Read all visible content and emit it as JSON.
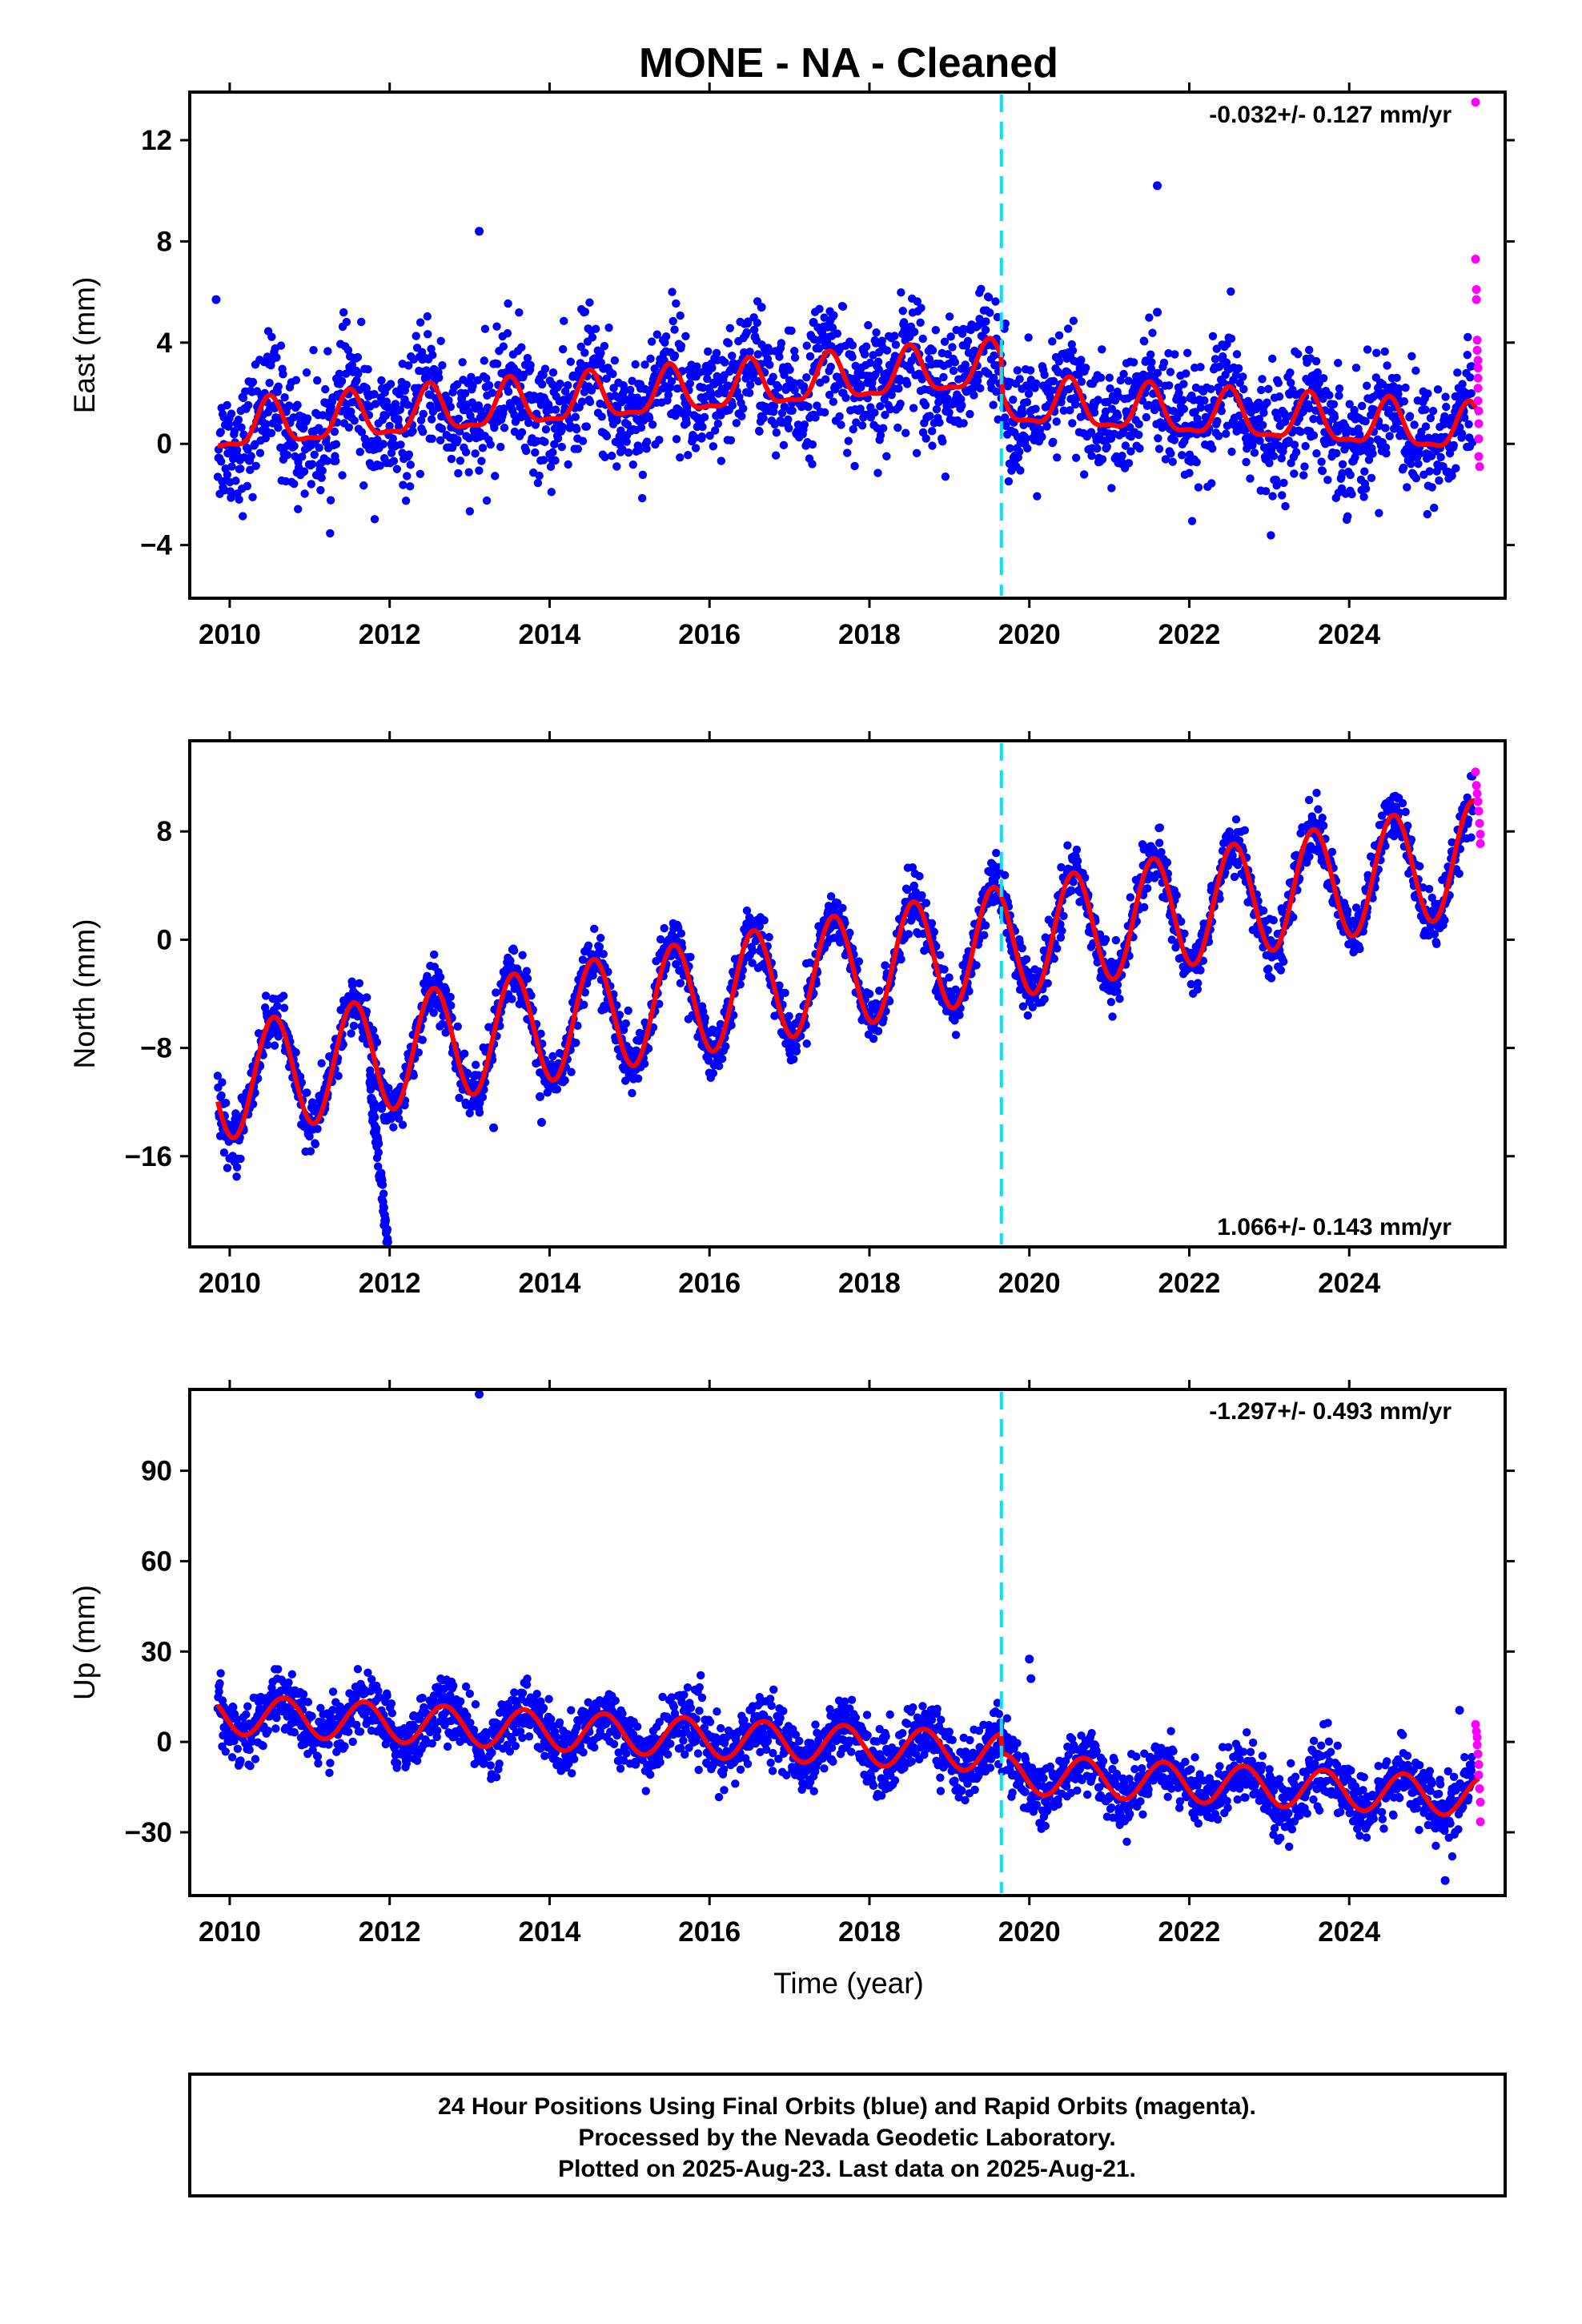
{
  "title": "MONE  - NA - Cleaned",
  "x_axis_label": "Time (year)",
  "footer_lines": [
    "24 Hour Positions Using Final Orbits (blue) and Rapid Orbits (magenta).",
    "Processed by the Nevada Geodetic Laboratory.",
    "Plotted on 2025-Aug-23. Last data on 2025-Aug-21."
  ],
  "colors": {
    "final_orbits": "#0000ff",
    "rapid_orbits": "#ff00ff",
    "model_fit": "#ff0000",
    "equipment_change": "#00e5ff",
    "frame": "#000000"
  },
  "chart_data": [
    {
      "type": "scatter",
      "component": "East",
      "ylabel": "East (mm)",
      "xlim": [
        2009.5,
        2025.95
      ],
      "ylim": [
        -6.1,
        13.9
      ],
      "yticks": [
        -4,
        0,
        4,
        8,
        12
      ],
      "xticks": [
        2010,
        2012,
        2014,
        2016,
        2018,
        2020,
        2022,
        2024
      ],
      "rate_annotation": "-0.032+/- 0.127 mm/yr",
      "equipment_change_x": 2019.65,
      "model": {
        "offset": 0.6,
        "trend": 0.25,
        "trend_after_break": -0.19,
        "break_x": 2019.65,
        "break_jump": -1.4,
        "annual_amp": 0.9,
        "annual_phase": 0.5,
        "semiannual_amp": 0.3
      },
      "final_orbits": {
        "x_range": [
          2009.85,
          2025.55
        ],
        "noise_std": 1.2
      },
      "rapid_orbits": {
        "x": [
          2025.58,
          2025.58,
          2025.59,
          2025.59,
          2025.6,
          2025.6,
          2025.61,
          2025.61,
          2025.61,
          2025.61,
          2025.61,
          2025.62,
          2025.62,
          2025.62,
          2025.62,
          2025.63
        ],
        "y": [
          13.5,
          7.3,
          6.1,
          5.7,
          4.1,
          3.7,
          3.3,
          3.0,
          2.6,
          2.2,
          1.7,
          1.3,
          0.8,
          0.2,
          -0.5,
          -0.9
        ]
      },
      "outliers": {
        "x": [
          2009.83,
          2013.12,
          2021.6,
          2021.6,
          2016.65,
          2017.3
        ],
        "y": [
          5.7,
          8.4,
          10.2,
          5.2,
          5.4,
          4.8
        ]
      }
    },
    {
      "type": "scatter",
      "component": "North",
      "ylabel": "North (mm)",
      "xlim": [
        2009.5,
        2025.95
      ],
      "ylim": [
        -22.7,
        14.7
      ],
      "yticks": [
        -16,
        -8,
        0,
        8
      ],
      "xticks": [
        2010,
        2012,
        2014,
        2016,
        2018,
        2020,
        2022,
        2024
      ],
      "rate_annotation": "1.066+/- 0.143 mm/yr",
      "equipment_change_x": 2019.65,
      "model": {
        "offset": -10.5,
        "trend": 1.066,
        "annual_amp": 4.2,
        "annual_phase": 0.55
      },
      "final_orbits": {
        "x_range": [
          2009.85,
          2025.55
        ],
        "noise_std": 1.0
      },
      "transient": {
        "x_range": [
          2011.75,
          2011.98
        ],
        "y_range": [
          -10.5,
          -22.5
        ]
      },
      "rapid_orbits": {
        "x": [
          2025.58,
          2025.59,
          2025.6,
          2025.61,
          2025.62,
          2025.63,
          2025.64,
          2025.64
        ],
        "y": [
          12.4,
          11.4,
          10.8,
          10.2,
          9.5,
          8.6,
          7.8,
          7.1
        ]
      },
      "outliers": {
        "x": [
          2013.3,
          2013.9,
          2013.88
        ],
        "y": [
          -13.9,
          -13.5,
          -11.6
        ]
      }
    },
    {
      "type": "scatter",
      "component": "Up",
      "ylabel": "Up (mm)",
      "xlim": [
        2009.5,
        2025.95
      ],
      "ylim": [
        -51,
        117
      ],
      "yticks": [
        -30,
        0,
        30,
        60,
        90
      ],
      "xticks": [
        2010,
        2012,
        2014,
        2016,
        2018,
        2020,
        2022,
        2024
      ],
      "rate_annotation": "-1.297+/- 0.493 mm/yr",
      "equipment_change_x": 2019.65,
      "model": {
        "offset": 9,
        "trend": -1.297,
        "break_x": 2019.65,
        "break_jump": -7,
        "annual_amp": 6.5,
        "annual_phase": 0.68
      },
      "final_orbits": {
        "x_range": [
          2009.85,
          2025.55
        ],
        "noise_std": 5.0
      },
      "rapid_orbits": {
        "x": [
          2025.58,
          2025.59,
          2025.6,
          2025.6,
          2025.61,
          2025.62,
          2025.62,
          2025.63,
          2025.64,
          2025.64
        ],
        "y": [
          5.8,
          3.5,
          1.5,
          -1.0,
          -4.0,
          -7.5,
          -11.0,
          -15.5,
          -20.0,
          -26.5
        ]
      },
      "outliers": {
        "x": [
          2013.12,
          2020.0,
          2020.02,
          2025.38,
          2025.2
        ],
        "y": [
          116.6,
          27.5,
          21.0,
          10.5,
          -46.0
        ]
      }
    }
  ]
}
